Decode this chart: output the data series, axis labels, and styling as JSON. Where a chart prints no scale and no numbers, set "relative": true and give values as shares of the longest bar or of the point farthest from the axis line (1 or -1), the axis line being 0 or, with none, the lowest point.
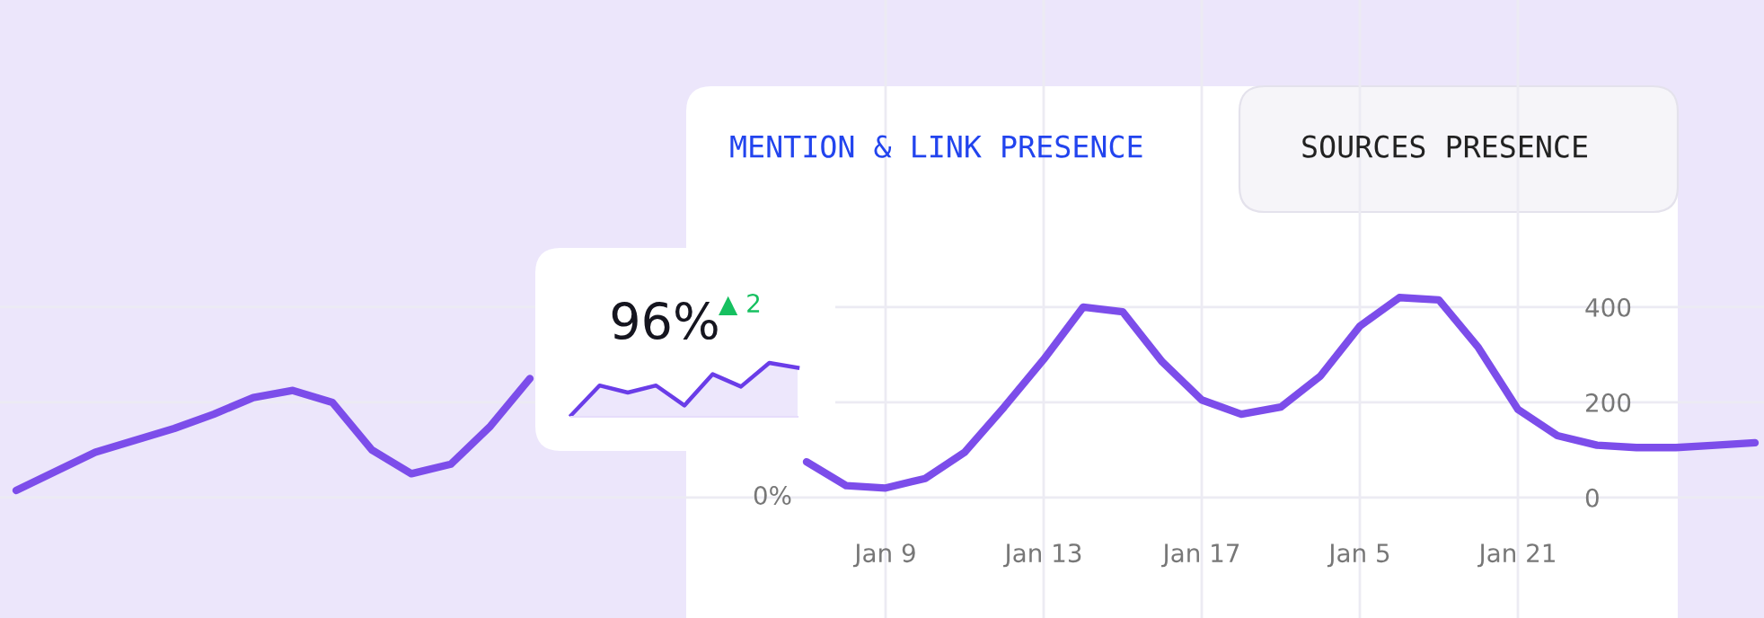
{
  "chart_data": [
    {
      "type": "line",
      "annotations": [
        "MENTION & LINK PRESENCE",
        "SOURCES PRESENCE",
        "0%"
      ],
      "categories": [
        null,
        null,
        null,
        null,
        null,
        null,
        null,
        null,
        null,
        null,
        null,
        null,
        null,
        null,
        null,
        null,
        null,
        null,
        null,
        null,
        null,
        null,
        "Jan 9",
        null,
        null,
        null,
        "Jan 13",
        null,
        null,
        null,
        "Jan 17",
        null,
        null,
        null,
        "Jan 5",
        null,
        null,
        null,
        "Jan 21",
        null,
        null,
        null,
        null,
        null,
        null
      ],
      "series": [
        {
          "color": "#7c4dea",
          "values": [
            15,
            55,
            95,
            120,
            145,
            175,
            210,
            225,
            200,
            100,
            50,
            70,
            150,
            250,
            null,
            null,
            null,
            null,
            null,
            null,
            75,
            25,
            20,
            40,
            95,
            190,
            290,
            400,
            390,
            285,
            205,
            175,
            190,
            255,
            360,
            420,
            415,
            315,
            185,
            130,
            110,
            105,
            105,
            110,
            115
          ]
        }
      ],
      "ylim": [
        -253,
        1045
      ],
      "yticks": [
        0,
        200,
        400
      ],
      "grid": true,
      "marker": "none",
      "line_style": "solid"
    },
    {
      "type": "area",
      "title": "96%",
      "subtitle": "▲ 2",
      "relative": true,
      "categories": [
        null,
        null,
        null,
        null,
        null,
        null,
        null,
        null,
        null
      ],
      "series": [
        {
          "color": "#6a3de8",
          "values": [
            0.03,
            0.58,
            0.45,
            0.58,
            0.21,
            0.79,
            0.56,
            1,
            0.91
          ]
        }
      ]
    }
  ]
}
